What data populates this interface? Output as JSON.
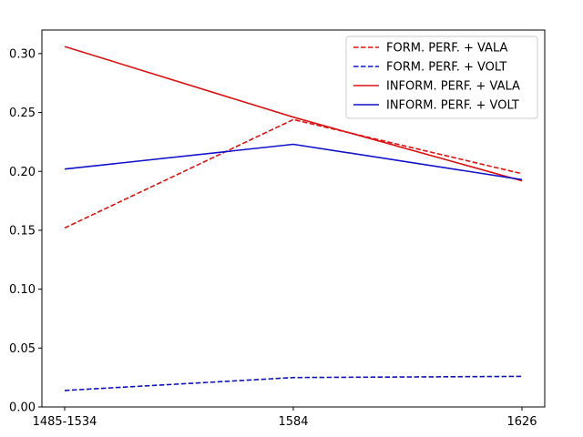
{
  "chart_data": {
    "type": "line",
    "title": "",
    "xlabel": "",
    "ylabel": "",
    "categories": [
      "1485-1534",
      "1584",
      "1626"
    ],
    "ylim": [
      0,
      0.32
    ],
    "yticks": [
      "0.00",
      "0.05",
      "0.10",
      "0.15",
      "0.20",
      "0.25",
      "0.30"
    ],
    "grid": false,
    "legend_position": "top-right",
    "series": [
      {
        "name": "FORM. PERF. + VALA",
        "color": "#dd1111",
        "dash": true,
        "values": [
          0.152,
          0.244,
          0.198
        ]
      },
      {
        "name": "FORM. PERF. + VOLT",
        "color": "#1111cc",
        "dash": true,
        "values": [
          0.014,
          0.025,
          0.026
        ]
      },
      {
        "name": "INFORM. PERF. + VALA",
        "color": "#dd1111",
        "dash": false,
        "values": [
          0.306,
          0.246,
          0.192
        ]
      },
      {
        "name": "INFORM. PERF. + VOLT",
        "color": "#1111cc",
        "dash": false,
        "values": [
          0.202,
          0.223,
          0.193
        ]
      }
    ]
  }
}
